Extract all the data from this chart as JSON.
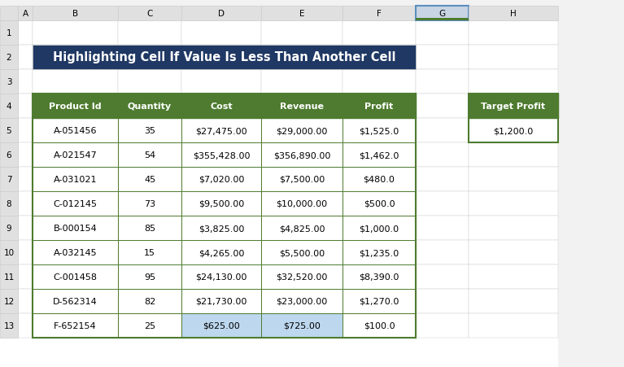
{
  "title": "Highlighting Cell If Value Is Less Than Another Cell",
  "title_bg": "#1F3864",
  "title_fg": "#FFFFFF",
  "header_bg": "#4E7B2F",
  "header_fg": "#FFFFFF",
  "col_headers": [
    "Product Id",
    "Quantity",
    "Cost",
    "Revenue",
    "Profit"
  ],
  "rows": [
    [
      "A-051456",
      "35",
      "$27,475.00",
      "$29,000.00",
      "$1,525.0"
    ],
    [
      "A-021547",
      "54",
      "$355,428.00",
      "$356,890.00",
      "$1,462.0"
    ],
    [
      "A-031021",
      "45",
      "$7,020.00",
      "$7,500.00",
      "$480.0"
    ],
    [
      "C-012145",
      "73",
      "$9,500.00",
      "$10,000.00",
      "$500.0"
    ],
    [
      "B-000154",
      "85",
      "$3,825.00",
      "$4,825.00",
      "$1,000.0"
    ],
    [
      "A-032145",
      "15",
      "$4,265.00",
      "$5,500.00",
      "$1,235.0"
    ],
    [
      "C-001458",
      "95",
      "$24,130.00",
      "$32,520.00",
      "$8,390.0"
    ],
    [
      "D-562314",
      "82",
      "$21,730.00",
      "$23,000.00",
      "$1,270.0"
    ],
    [
      "F-652154",
      "25",
      "$625.00",
      "$725.00",
      "$100.0"
    ]
  ],
  "target_profit_label": "Target Profit",
  "target_profit_value": "$1,200.0",
  "highlight_last_row_cols": [
    2,
    3
  ],
  "col_letters": [
    "A",
    "B",
    "C",
    "D",
    "E",
    "F",
    "G",
    "H"
  ],
  "row_numbers": [
    "1",
    "2",
    "3",
    "4",
    "5",
    "6",
    "7",
    "8",
    "9",
    "10",
    "11",
    "12",
    "13"
  ],
  "excel_header_bg": "#E0E0E0",
  "excel_header_fg": "#000000",
  "g_col_header_bg": "#C8D4E3",
  "g_col_header_edge": "#5B8FBE",
  "cell_bg": "#FFFFFF",
  "grid_color": "#CCCCCC",
  "highlight_cell_bg": "#BDD7EE",
  "table_border": "#4E7B2F",
  "table_border_lw": 1.5,
  "fig_bg": "#F2F2F2"
}
